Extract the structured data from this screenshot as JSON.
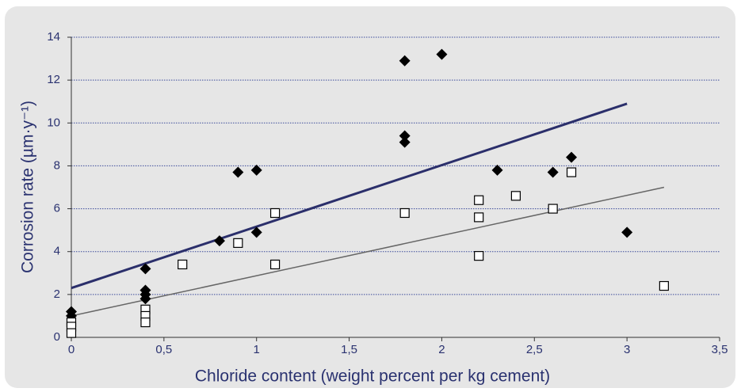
{
  "chart_data": {
    "type": "scatter",
    "x_label": "Chloride content (weight percent per kg cement)",
    "y_label": "Corrosion rate (µm·y⁻¹)",
    "xlim": [
      0,
      3.5
    ],
    "ylim": [
      0,
      14
    ],
    "xticks": [
      0,
      {
        "value": 0.5,
        "label": "0,5"
      },
      1,
      {
        "value": 1.5,
        "label": "1,5"
      },
      2,
      {
        "value": 2.5,
        "label": "2,5"
      },
      3,
      {
        "value": 3.5,
        "label": "3,5"
      }
    ],
    "yticks": [
      0,
      2,
      4,
      6,
      8,
      10,
      12,
      14
    ],
    "grid": true,
    "series": [
      {
        "marker": "diamond",
        "color": "#000000",
        "x": [
          0,
          0,
          0.4,
          0.4,
          0.4,
          0.4,
          0.8,
          0.9,
          1.0,
          1.0,
          1.8,
          1.8,
          1.8,
          2.0,
          2.3,
          2.6,
          2.7,
          3.0
        ],
        "values": [
          1.2,
          1.0,
          3.2,
          2.2,
          2.0,
          1.8,
          4.5,
          7.7,
          7.8,
          4.9,
          12.9,
          9.4,
          9.1,
          13.2,
          7.8,
          7.7,
          8.4,
          4.9
        ]
      },
      {
        "marker": "square",
        "color": "#000000",
        "x": [
          0,
          0,
          0,
          0.4,
          0.4,
          0.4,
          0.6,
          0.9,
          1.1,
          1.1,
          1.8,
          2.2,
          2.2,
          2.2,
          2.4,
          2.6,
          2.7,
          3.2
        ],
        "values": [
          0.7,
          0.5,
          0.2,
          1.3,
          1.0,
          0.7,
          3.4,
          4.4,
          5.8,
          3.4,
          5.8,
          6.4,
          5.6,
          3.8,
          6.6,
          6.0,
          7.7,
          2.4
        ]
      }
    ],
    "trendlines": [
      {
        "color": "#2b2f6b",
        "x": [
          0,
          3
        ],
        "values": [
          2.3,
          10.9
        ]
      },
      {
        "color": "#666666",
        "x": [
          0,
          3.2
        ],
        "values": [
          1.0,
          7.0
        ]
      }
    ]
  }
}
